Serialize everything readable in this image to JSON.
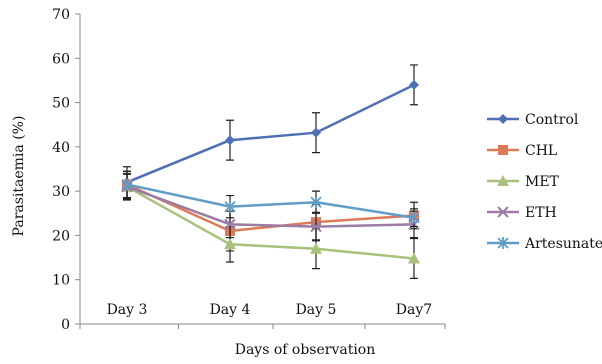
{
  "chart_data": {
    "type": "line",
    "xlabel": "Days of observation",
    "ylabel": "Parasitaemia (%)",
    "categories": [
      "Day 3",
      "Day 4",
      "Day 5",
      "Day7"
    ],
    "ylim": [
      0,
      70
    ],
    "yticks": [
      0,
      10,
      20,
      30,
      40,
      50,
      60,
      70
    ],
    "grid": false,
    "error_bars": true,
    "legend_position": "right",
    "series": [
      {
        "name": "Control",
        "color": "#4f6fb6",
        "marker": "diamond",
        "values": [
          32,
          41.5,
          43.2,
          54
        ],
        "errors": [
          3.5,
          4.5,
          4.5,
          4.5
        ]
      },
      {
        "name": "CHL",
        "color": "#dd7b58",
        "marker": "square",
        "values": [
          31.5,
          21,
          23,
          24.5
        ],
        "errors": [
          3,
          4.5,
          4,
          3
        ]
      },
      {
        "name": "MET",
        "color": "#a8c17b",
        "marker": "triangle",
        "values": [
          31,
          18,
          17,
          14.8
        ],
        "errors": [
          3,
          4,
          4.5,
          4.5
        ]
      },
      {
        "name": "ETH",
        "color": "#9a7ca4",
        "marker": "x",
        "values": [
          31,
          22.5,
          22,
          22.5
        ],
        "errors": [
          2.8,
          3,
          3.2,
          3
        ]
      },
      {
        "name": "Artesunate",
        "color": "#5f9cc6",
        "marker": "star",
        "values": [
          31.5,
          26.5,
          27.5,
          24
        ],
        "errors": [
          3,
          2.5,
          2.5,
          2
        ]
      }
    ]
  }
}
